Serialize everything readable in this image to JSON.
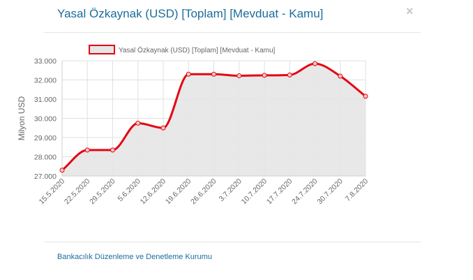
{
  "modal": {
    "title": "Yasal Özkaynak (USD) [Toplam] [Mevduat - Kamu]",
    "close_label": "×",
    "footer_link": "Bankacılık Düzenleme ve Denetleme Kurumu"
  },
  "colors": {
    "title": "#1b6d9b",
    "line": "#e30613",
    "fill": "#e6e6e6",
    "grid": "#e0e0e0"
  },
  "chart_data": {
    "type": "area",
    "title": "",
    "xlabel": "",
    "ylabel": "Milyon USD",
    "legend": "top-center",
    "grid": true,
    "ylim": [
      27000,
      33000
    ],
    "yticks": [
      "27.000",
      "28.000",
      "29.000",
      "30.000",
      "31.000",
      "32.000",
      "33.000"
    ],
    "categories": [
      "15.5.2020",
      "22.5.2020",
      "29.5.2020",
      "5.6.2020",
      "12.6.2020",
      "19.6.2020",
      "26.6.2020",
      "3.7.2020",
      "10.7.2020",
      "17.7.2020",
      "24.7.2020",
      "30.7.2020",
      "7.8.2020"
    ],
    "series": [
      {
        "name": "Yasal Özkaynak (USD) [Toplam] [Mevduat - Kamu]",
        "values": [
          27300,
          28350,
          28350,
          29750,
          29500,
          32300,
          32300,
          32220,
          32240,
          32260,
          32850,
          32200,
          31150
        ]
      }
    ]
  }
}
